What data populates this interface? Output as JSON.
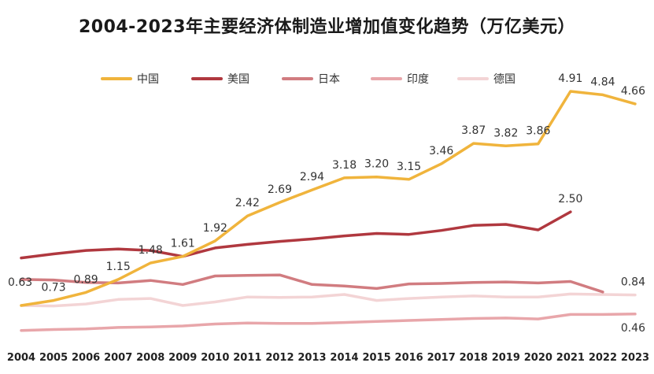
{
  "chart_data": {
    "type": "line",
    "title": "2004-2023年主要经济体制造业增加值变化趋势（万亿美元）",
    "xlabel": "",
    "ylabel": "",
    "ylim": [
      0,
      5.2
    ],
    "grid": false,
    "legend_position": "top",
    "x": [
      "2004",
      "2005",
      "2006",
      "2007",
      "2008",
      "2009",
      "2010",
      "2011",
      "2012",
      "2013",
      "2014",
      "2015",
      "2016",
      "2017",
      "2018",
      "2019",
      "2020",
      "2021",
      "2022",
      "2023"
    ],
    "series": [
      {
        "name": "中国",
        "color": "#F0B43C",
        "values": [
          0.63,
          0.73,
          0.89,
          1.15,
          1.48,
          1.61,
          1.92,
          2.42,
          2.69,
          2.94,
          3.18,
          3.2,
          3.15,
          3.46,
          3.87,
          3.82,
          3.86,
          4.91,
          4.84,
          4.66
        ]
      },
      {
        "name": "美国",
        "color": "#B0383F",
        "values": [
          1.58,
          1.66,
          1.73,
          1.76,
          1.73,
          1.61,
          1.78,
          1.85,
          1.91,
          1.96,
          2.02,
          2.07,
          2.05,
          2.13,
          2.23,
          2.25,
          2.14,
          2.5,
          null,
          null
        ]
      },
      {
        "name": "日本",
        "color": "#D17C80",
        "values": [
          1.15,
          1.14,
          1.09,
          1.08,
          1.13,
          1.05,
          1.22,
          1.23,
          1.24,
          1.05,
          1.02,
          0.97,
          1.06,
          1.07,
          1.09,
          1.1,
          1.08,
          1.11,
          0.9,
          null
        ]
      },
      {
        "name": "印度",
        "color": "#E8A6AA",
        "values": [
          0.13,
          0.15,
          0.16,
          0.19,
          0.2,
          0.22,
          0.26,
          0.28,
          0.27,
          0.27,
          0.29,
          0.31,
          0.33,
          0.35,
          0.37,
          0.38,
          0.36,
          0.45,
          0.45,
          0.46
        ]
      },
      {
        "name": "德国",
        "color": "#F3D4D5",
        "values": [
          0.63,
          0.62,
          0.66,
          0.75,
          0.77,
          0.63,
          0.7,
          0.8,
          0.79,
          0.8,
          0.85,
          0.73,
          0.77,
          0.8,
          0.82,
          0.8,
          0.8,
          0.86,
          0.85,
          0.84
        ]
      }
    ],
    "data_labels": [
      {
        "series": 0,
        "index": 0,
        "text": "0.63",
        "pos": "left"
      },
      {
        "series": 0,
        "index": 1,
        "text": "0.73",
        "pos": "above"
      },
      {
        "series": 0,
        "index": 2,
        "text": "0.89",
        "pos": "above"
      },
      {
        "series": 0,
        "index": 3,
        "text": "1.15",
        "pos": "above"
      },
      {
        "series": 0,
        "index": 4,
        "text": "1.48",
        "pos": "above"
      },
      {
        "series": 0,
        "index": 5,
        "text": "1.61",
        "pos": "above"
      },
      {
        "series": 0,
        "index": 6,
        "text": "1.92",
        "pos": "above"
      },
      {
        "series": 0,
        "index": 7,
        "text": "2.42",
        "pos": "above"
      },
      {
        "series": 0,
        "index": 8,
        "text": "2.69",
        "pos": "above"
      },
      {
        "series": 0,
        "index": 9,
        "text": "2.94",
        "pos": "above"
      },
      {
        "series": 0,
        "index": 10,
        "text": "3.18",
        "pos": "above"
      },
      {
        "series": 0,
        "index": 11,
        "text": "3.20",
        "pos": "above"
      },
      {
        "series": 0,
        "index": 12,
        "text": "3.15",
        "pos": "above"
      },
      {
        "series": 0,
        "index": 13,
        "text": "3.46",
        "pos": "above"
      },
      {
        "series": 0,
        "index": 14,
        "text": "3.87",
        "pos": "above"
      },
      {
        "series": 0,
        "index": 15,
        "text": "3.82",
        "pos": "above"
      },
      {
        "series": 0,
        "index": 16,
        "text": "3.86",
        "pos": "above"
      },
      {
        "series": 0,
        "index": 17,
        "text": "4.91",
        "pos": "above"
      },
      {
        "series": 0,
        "index": 18,
        "text": "4.84",
        "pos": "above"
      },
      {
        "series": 0,
        "index": 19,
        "text": "4.66",
        "pos": "above"
      },
      {
        "series": 1,
        "index": 17,
        "text": "2.50",
        "pos": "above"
      },
      {
        "series": 4,
        "index": 19,
        "text": "0.84",
        "pos": "above"
      },
      {
        "series": 3,
        "index": 19,
        "text": "0.46",
        "pos": "below"
      }
    ]
  }
}
